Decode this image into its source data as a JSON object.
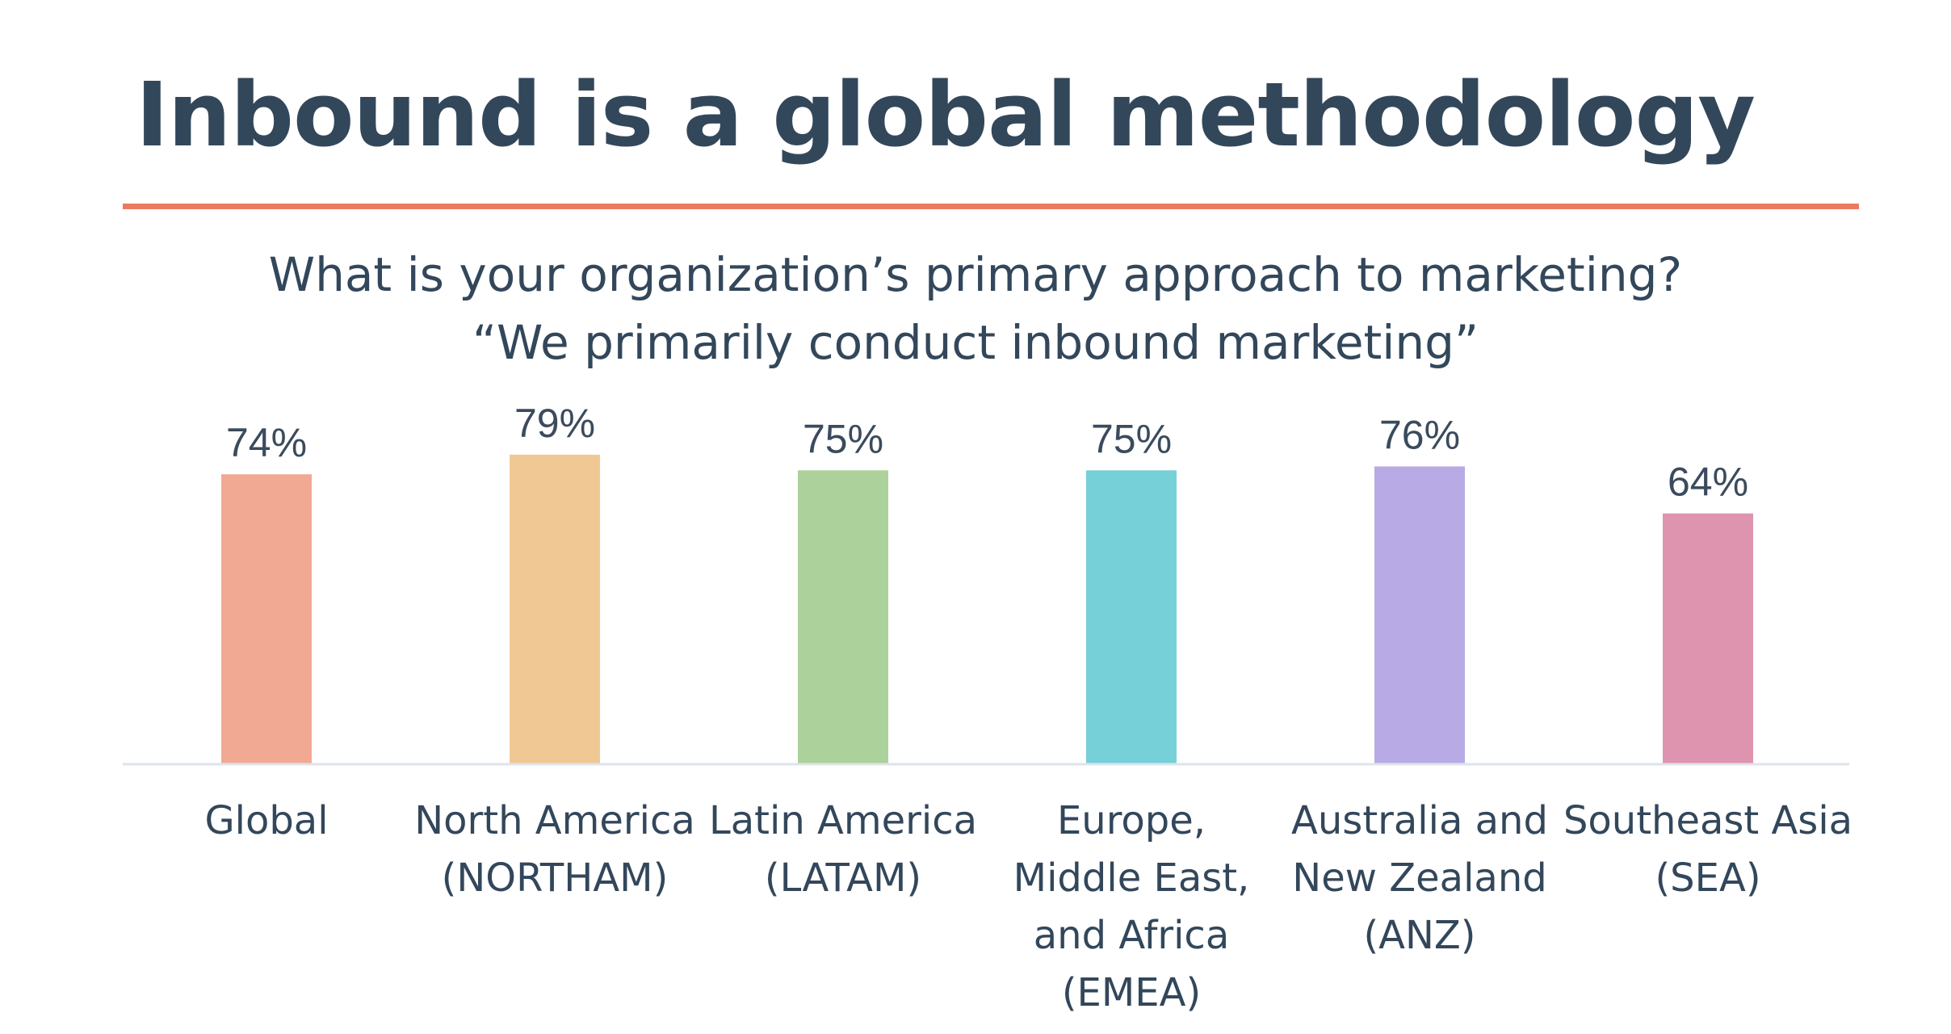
{
  "title": "Inbound is a global methodology",
  "question": {
    "line1": "What is your organization’s primary approach to marketing?",
    "line2": "“We primarily conduct inbound marketing”"
  },
  "colors": {
    "title_text": "#33475b",
    "accent_rule": "#ea7b5f",
    "baseline": "#dfe3eb"
  },
  "chart_data": {
    "type": "bar",
    "categories": [
      [
        "Global"
      ],
      [
        "North America",
        "(NORTHAM)"
      ],
      [
        "Latin America",
        "(LATAM)"
      ],
      [
        "Europe,",
        "Middle East,",
        "and Africa",
        "(EMEA)"
      ],
      [
        "Australia and",
        "New Zealand",
        "(ANZ)"
      ],
      [
        "Southeast Asia",
        "(SEA)"
      ]
    ],
    "values": [
      74,
      79,
      75,
      75,
      76,
      64
    ],
    "value_labels": [
      "74%",
      "79%",
      "75%",
      "75%",
      "76%",
      "64%"
    ],
    "bar_colors": [
      "#f2a994",
      "#f0c894",
      "#add19a",
      "#76d0d8",
      "#b8aae5",
      "#de93ae"
    ],
    "ylim": [
      0,
      100
    ],
    "grid": false,
    "legend": "none"
  }
}
